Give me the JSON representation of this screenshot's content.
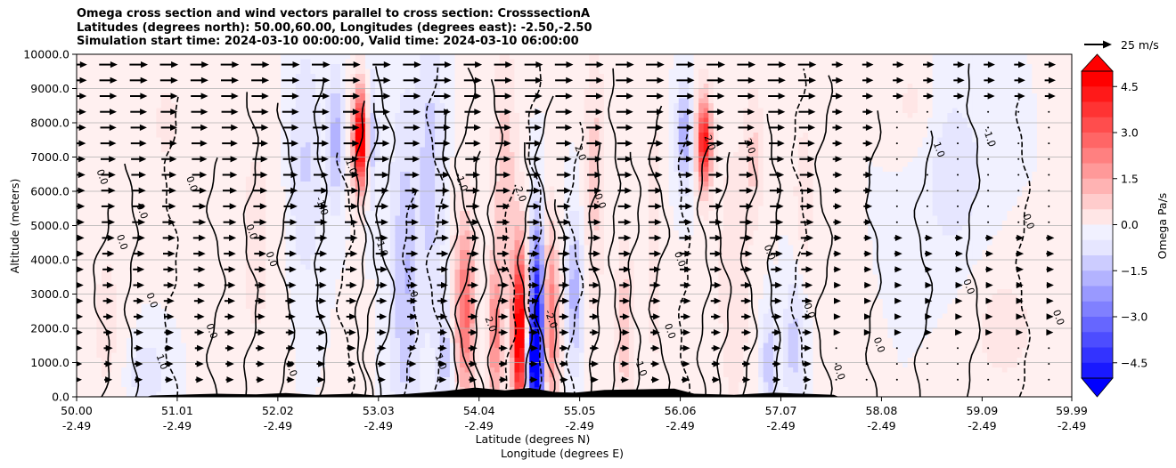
{
  "chart_data": {
    "type": "contour",
    "title_lines": [
      "Omega cross section and wind vectors parallel to cross section: CrosssectionA",
      "Latitudes (degrees north): 50.00,60.00, Longitudes (degrees east): -2.50,-2.50",
      "Simulation start time: 2024-03-10 00:00:00, Valid time: 2024-03-10 06:00:00"
    ],
    "ylabel": "Altitude (meters)",
    "xlabel_lat": "Latitude (degrees N)",
    "xlabel_lon": "Longitude (degrees E)",
    "ylim": [
      0,
      10000
    ],
    "xlim": [
      50.0,
      59.99
    ],
    "y_ticks": [
      "0.0",
      "1000.0",
      "2000.0",
      "3000.0",
      "4000.0",
      "5000.0",
      "6000.0",
      "7000.0",
      "8000.0",
      "9000.0",
      "10000.0"
    ],
    "y_tick_values": [
      0,
      1000,
      2000,
      3000,
      4000,
      5000,
      6000,
      7000,
      8000,
      9000,
      10000
    ],
    "x_ticks": [
      {
        "lat": "50.00",
        "lon": "-2.49",
        "value": 50.0
      },
      {
        "lat": "51.01",
        "lon": "-2.49",
        "value": 51.01
      },
      {
        "lat": "52.02",
        "lon": "-2.49",
        "value": 52.02
      },
      {
        "lat": "53.03",
        "lon": "-2.49",
        "value": 53.03
      },
      {
        "lat": "54.04",
        "lon": "-2.49",
        "value": 54.04
      },
      {
        "lat": "55.05",
        "lon": "-2.49",
        "value": 55.05
      },
      {
        "lat": "56.06",
        "lon": "-2.49",
        "value": 56.06
      },
      {
        "lat": "57.07",
        "lon": "-2.49",
        "value": 57.07
      },
      {
        "lat": "58.08",
        "lon": "-2.49",
        "value": 58.08
      },
      {
        "lat": "59.09",
        "lon": "-2.49",
        "value": 59.09
      },
      {
        "lat": "59.99",
        "lon": "-2.49",
        "value": 59.99
      }
    ],
    "grid": "horizontal",
    "colorbar": {
      "label": "Omega Pa/s",
      "range": [
        -5,
        5
      ],
      "ticks": [
        "4.5",
        "3.0",
        "1.5",
        "0.0",
        "−1.5",
        "−3.0",
        "−4.5"
      ],
      "tick_values": [
        4.5,
        3.0,
        1.5,
        0.0,
        -1.5,
        -3.0,
        -4.5
      ],
      "colormap": "bwr",
      "extend": "both"
    },
    "wind_key": {
      "label": "25 m/s",
      "value": 25
    },
    "contour_labels": [
      "0.0",
      "1.0",
      "-1.0",
      "2.0",
      "-2.0"
    ],
    "features": [
      {
        "name": "updraft-core",
        "lat": 54.63,
        "alt_range": [
          0,
          3800
        ],
        "omega_min": -5
      },
      {
        "name": "subsidence-core",
        "lat": 54.45,
        "alt_range": [
          0,
          3500
        ],
        "omega_max": 5
      },
      {
        "name": "subsidence-core",
        "lat": 52.85,
        "alt_range": [
          6500,
          8500
        ],
        "omega_max": 5
      },
      {
        "name": "subsidence-core",
        "lat": 56.3,
        "alt_range": [
          6500,
          8300
        ],
        "omega_max": 4
      }
    ],
    "colors": {
      "terrain": "#000000",
      "positive": "#ff0000",
      "negative": "#0000ff"
    }
  }
}
